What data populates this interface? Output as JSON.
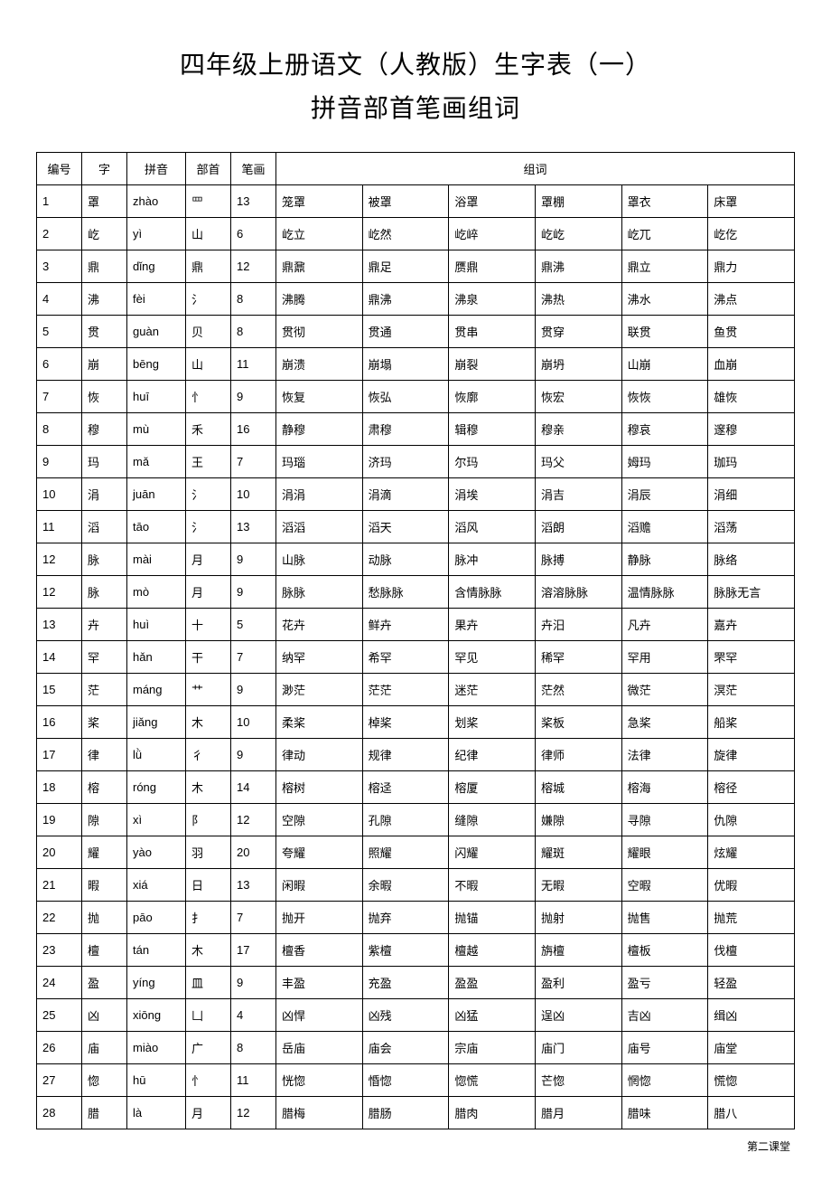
{
  "title": "四年级上册语文（人教版）生字表（一）",
  "subtitle": "拼音部首笔画组词",
  "footer": "第二课堂",
  "columns": {
    "num": "编号",
    "char": "字",
    "pinyin": "拼音",
    "radical": "部首",
    "strokes": "笔画",
    "words": "组词"
  },
  "rows": [
    {
      "num": "1",
      "char": "罩",
      "pinyin": "zhào",
      "radical": "罒",
      "strokes": "13",
      "words": [
        "笼罩",
        "被罩",
        "浴罩",
        "罩棚",
        "罩衣",
        "床罩"
      ]
    },
    {
      "num": "2",
      "char": "屹",
      "pinyin": "yì",
      "radical": "山",
      "strokes": "6",
      "words": [
        "屹立",
        "屹然",
        "屹崪",
        "屹屹",
        "屹兀",
        "屹仡"
      ]
    },
    {
      "num": "3",
      "char": "鼎",
      "pinyin": "dǐng",
      "radical": "鼎",
      "strokes": "12",
      "words": [
        "鼎鼐",
        "鼎足",
        "赝鼎",
        "鼎沸",
        "鼎立",
        "鼎力"
      ]
    },
    {
      "num": "4",
      "char": "沸",
      "pinyin": "fèi",
      "radical": "氵",
      "strokes": "8",
      "words": [
        "沸腾",
        "鼎沸",
        "沸泉",
        "沸热",
        "沸水",
        "沸点"
      ]
    },
    {
      "num": "5",
      "char": "贯",
      "pinyin": "guàn",
      "radical": "贝",
      "strokes": "8",
      "words": [
        "贯彻",
        "贯通",
        "贯串",
        "贯穿",
        "联贯",
        "鱼贯"
      ]
    },
    {
      "num": "6",
      "char": "崩",
      "pinyin": "bēng",
      "radical": "山",
      "strokes": "11",
      "words": [
        "崩溃",
        "崩塌",
        "崩裂",
        "崩坍",
        "山崩",
        "血崩"
      ]
    },
    {
      "num": "7",
      "char": "恢",
      "pinyin": "huī",
      "radical": "忄",
      "strokes": "9",
      "words": [
        "恢复",
        "恢弘",
        "恢廓",
        "恢宏",
        "恢恢",
        "雄恢"
      ]
    },
    {
      "num": "8",
      "char": "穆",
      "pinyin": "mù",
      "radical": "禾",
      "strokes": "16",
      "words": [
        "静穆",
        "肃穆",
        "辑穆",
        "穆亲",
        "穆哀",
        "邃穆"
      ]
    },
    {
      "num": "9",
      "char": "玛",
      "pinyin": "mǎ",
      "radical": "王",
      "strokes": "7",
      "words": [
        "玛瑙",
        "济玛",
        "尔玛",
        "玛父",
        "姆玛",
        "珈玛"
      ]
    },
    {
      "num": "10",
      "char": "涓",
      "pinyin": "juān",
      "radical": "氵",
      "strokes": "10",
      "words": [
        "涓涓",
        "涓滴",
        "涓埃",
        "涓吉",
        "涓辰",
        "涓细"
      ]
    },
    {
      "num": "11",
      "char": "滔",
      "pinyin": "tāo",
      "radical": "氵",
      "strokes": "13",
      "words": [
        "滔滔",
        "滔天",
        "滔风",
        "滔朗",
        "滔赡",
        "滔荡"
      ]
    },
    {
      "num": "12",
      "char": "脉",
      "pinyin": "mài",
      "radical": "月",
      "strokes": "9",
      "words": [
        "山脉",
        "动脉",
        "脉冲",
        "脉搏",
        "静脉",
        "脉络"
      ]
    },
    {
      "num": "12",
      "char": "脉",
      "pinyin": "mò",
      "radical": "月",
      "strokes": "9",
      "words": [
        "脉脉",
        "愁脉脉",
        "含情脉脉",
        "溶溶脉脉",
        "温情脉脉",
        "脉脉无言"
      ]
    },
    {
      "num": "13",
      "char": "卉",
      "pinyin": "huì",
      "radical": "十",
      "strokes": "5",
      "words": [
        "花卉",
        "鲜卉",
        "果卉",
        "卉汨",
        "凡卉",
        "嘉卉"
      ]
    },
    {
      "num": "14",
      "char": "罕",
      "pinyin": "hǎn",
      "radical": "干",
      "strokes": "7",
      "words": [
        "纳罕",
        "希罕",
        "罕见",
        "稀罕",
        "罕用",
        "罘罕"
      ]
    },
    {
      "num": "15",
      "char": "茫",
      "pinyin": "máng",
      "radical": "艹",
      "strokes": "9",
      "words": [
        "渺茫",
        "茫茫",
        "迷茫",
        "茫然",
        "微茫",
        "溟茫"
      ]
    },
    {
      "num": "16",
      "char": "桨",
      "pinyin": "jiǎng",
      "radical": "木",
      "strokes": "10",
      "words": [
        "柔桨",
        "棹桨",
        "划桨",
        "桨板",
        "急桨",
        "船桨"
      ]
    },
    {
      "num": "17",
      "char": "律",
      "pinyin": "lǜ",
      "radical": "彳",
      "strokes": "9",
      "words": [
        "律动",
        "规律",
        "纪律",
        "律师",
        "法律",
        "旋律"
      ]
    },
    {
      "num": "18",
      "char": "榕",
      "pinyin": "róng",
      "radical": "木",
      "strokes": "14",
      "words": [
        "榕树",
        "榕迳",
        "榕厦",
        "榕城",
        "榕海",
        "榕径"
      ]
    },
    {
      "num": "19",
      "char": "隙",
      "pinyin": "xì",
      "radical": "阝",
      "strokes": "12",
      "words": [
        "空隙",
        "孔隙",
        "缝隙",
        "嫌隙",
        "寻隙",
        "仇隙"
      ]
    },
    {
      "num": "20",
      "char": "耀",
      "pinyin": "yào",
      "radical": "羽",
      "strokes": "20",
      "words": [
        "夸耀",
        "照耀",
        "闪耀",
        "耀斑",
        "耀眼",
        "炫耀"
      ]
    },
    {
      "num": "21",
      "char": "暇",
      "pinyin": "xiá",
      "radical": "日",
      "strokes": "13",
      "words": [
        "闲暇",
        "余暇",
        "不暇",
        "无暇",
        "空暇",
        "优暇"
      ]
    },
    {
      "num": "22",
      "char": "抛",
      "pinyin": "pāo",
      "radical": "扌",
      "strokes": "7",
      "words": [
        "抛开",
        "抛弃",
        "抛锚",
        "抛射",
        "抛售",
        "抛荒"
      ]
    },
    {
      "num": "23",
      "char": "檀",
      "pinyin": "tán",
      "radical": "木",
      "strokes": "17",
      "words": [
        "檀香",
        "紫檀",
        "檀越",
        "旃檀",
        "檀板",
        "伐檀"
      ]
    },
    {
      "num": "24",
      "char": "盈",
      "pinyin": "yíng",
      "radical": "皿",
      "strokes": "9",
      "words": [
        "丰盈",
        "充盈",
        "盈盈",
        "盈利",
        "盈亏",
        "轻盈"
      ]
    },
    {
      "num": "25",
      "char": "凶",
      "pinyin": "xiōng",
      "radical": "凵",
      "strokes": "4",
      "words": [
        "凶悍",
        "凶残",
        "凶猛",
        "逞凶",
        "吉凶",
        "缉凶"
      ]
    },
    {
      "num": "26",
      "char": "庙",
      "pinyin": "miào",
      "radical": "广",
      "strokes": "8",
      "words": [
        "岳庙",
        "庙会",
        "宗庙",
        "庙门",
        "庙号",
        "庙堂"
      ]
    },
    {
      "num": "27",
      "char": "惚",
      "pinyin": "hū",
      "radical": "忄",
      "strokes": "11",
      "words": [
        "恍惚",
        "惛惚",
        "惚慌",
        "芒惚",
        "惘惚",
        "慌惚"
      ]
    },
    {
      "num": "28",
      "char": "腊",
      "pinyin": "là",
      "radical": "月",
      "strokes": "12",
      "words": [
        "腊梅",
        "腊肠",
        "腊肉",
        "腊月",
        "腊味",
        "腊八"
      ]
    }
  ]
}
